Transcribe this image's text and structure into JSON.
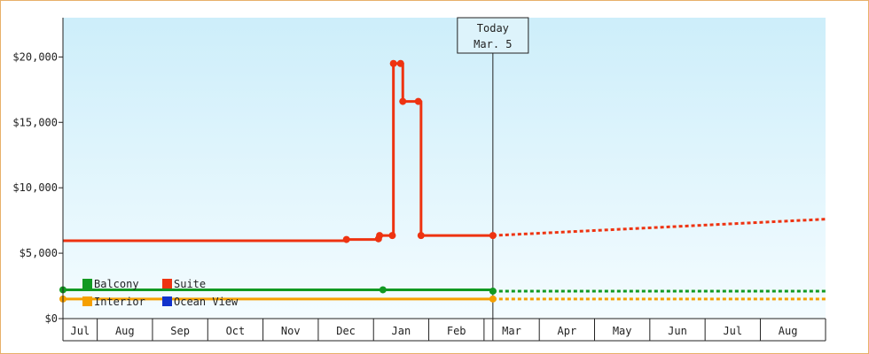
{
  "chart_data": {
    "type": "line",
    "title": "",
    "xlabel": "",
    "ylabel": "",
    "ylim": [
      0,
      23000
    ],
    "y_ticks": [
      {
        "value": 0,
        "label": "$0"
      },
      {
        "value": 5000,
        "label": "$5,000"
      },
      {
        "value": 10000,
        "label": "$10,000"
      },
      {
        "value": 15000,
        "label": "$15,000"
      },
      {
        "value": 20000,
        "label": "$20,000"
      }
    ],
    "x_range_months": [
      0,
      13.8
    ],
    "x_ticks": [
      {
        "label": "Jul",
        "start": 0,
        "end": 0.62
      },
      {
        "label": "Aug",
        "start": 0.62,
        "end": 1.62
      },
      {
        "label": "Sep",
        "start": 1.62,
        "end": 2.62
      },
      {
        "label": "Oct",
        "start": 2.62,
        "end": 3.62
      },
      {
        "label": "Nov",
        "start": 3.62,
        "end": 4.62
      },
      {
        "label": "Dec",
        "start": 4.62,
        "end": 5.62
      },
      {
        "label": "Jan",
        "start": 5.62,
        "end": 6.62
      },
      {
        "label": "Feb",
        "start": 6.62,
        "end": 7.62
      },
      {
        "label": "Mar",
        "start": 7.62,
        "end": 8.62
      },
      {
        "label": "Apr",
        "start": 8.62,
        "end": 9.62
      },
      {
        "label": "May",
        "start": 9.62,
        "end": 10.62
      },
      {
        "label": "Jun",
        "start": 10.62,
        "end": 11.62
      },
      {
        "label": "Jul",
        "start": 11.62,
        "end": 12.62
      },
      {
        "label": "Aug",
        "start": 12.62,
        "end": 13.62
      }
    ],
    "grid": false,
    "legend_position": "bottom-left",
    "today": {
      "line1": "Today",
      "line2": "Mar. 5",
      "x": 7.78
    },
    "series": [
      {
        "name": "Suite",
        "color": "#ee3311",
        "step": true,
        "points": [
          {
            "x": 0,
            "y": 5950
          },
          {
            "x": 5.13,
            "y": 6050,
            "marker": true
          },
          {
            "x": 5.71,
            "y": 6100,
            "marker": true
          },
          {
            "x": 5.73,
            "y": 6350,
            "marker": true
          },
          {
            "x": 5.96,
            "y": 6350,
            "marker": true
          },
          {
            "x": 5.98,
            "y": 19500,
            "marker": true
          },
          {
            "x": 6.11,
            "y": 19500,
            "marker": true
          },
          {
            "x": 6.15,
            "y": 16600,
            "marker": true
          },
          {
            "x": 6.43,
            "y": 16600,
            "marker": true
          },
          {
            "x": 6.48,
            "y": 6350,
            "marker": true
          },
          {
            "x": 7.78,
            "y": 6350,
            "marker": true
          }
        ],
        "projection": [
          {
            "x": 7.78,
            "y": 6350
          },
          {
            "x": 13.8,
            "y": 7600
          }
        ]
      },
      {
        "name": "Balcony",
        "color": "#119922",
        "step": true,
        "points": [
          {
            "x": 0,
            "y": 2200,
            "marker": true
          },
          {
            "x": 5.79,
            "y": 2200,
            "marker": true
          },
          {
            "x": 7.78,
            "y": 2100,
            "marker": true
          }
        ],
        "projection": [
          {
            "x": 7.78,
            "y": 2100
          },
          {
            "x": 13.8,
            "y": 2100
          }
        ]
      },
      {
        "name": "Interior",
        "color": "#f5a000",
        "step": true,
        "points": [
          {
            "x": 0,
            "y": 1500,
            "marker": true
          },
          {
            "x": 7.78,
            "y": 1500,
            "marker": true
          }
        ],
        "projection": [
          {
            "x": 7.78,
            "y": 1500
          },
          {
            "x": 13.8,
            "y": 1500
          }
        ]
      },
      {
        "name": "Ocean View",
        "color": "#1133cc",
        "step": true,
        "points": [],
        "projection": []
      }
    ],
    "legend_rows": [
      [
        "Balcony",
        "Suite"
      ],
      [
        "Interior",
        "Ocean View"
      ]
    ]
  }
}
